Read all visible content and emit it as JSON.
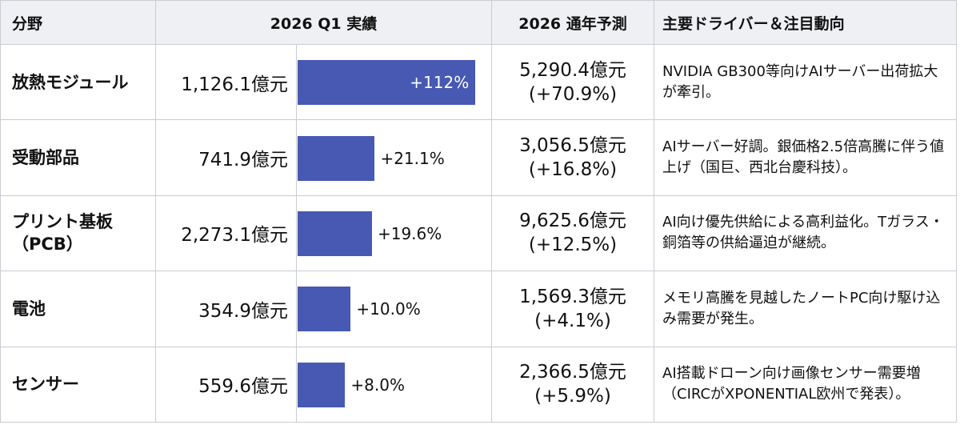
{
  "header": {
    "category": "分野",
    "q1": "2026 Q1 実績",
    "forecast": "2026 通年予測",
    "driver": "主要ドライバー＆注目動向"
  },
  "table": {
    "rows": [
      {
        "category": "放熱モジュール",
        "q1": "1,126.1億元",
        "growth": {
          "value": 112,
          "label": "+112%"
        },
        "forecast": "5,290.4億元",
        "forecast_growth": "(+70.9%)",
        "driver": "NVIDIA GB300等向けAIサーバー出荷拡大が牽引。"
      },
      {
        "category": "受動部品",
        "q1": "741.9億元",
        "growth": {
          "value": 21.1,
          "label": "+21.1%"
        },
        "forecast": "3,056.5億元",
        "forecast_growth": "(+16.8%)",
        "driver": "AIサーバー好調。銀価格2.5倍高騰に伴う値上げ（国巨、西北台慶科技）。"
      },
      {
        "category": "プリント基板（PCB）",
        "q1": "2,273.1億元",
        "growth": {
          "value": 19.6,
          "label": "+19.6%"
        },
        "forecast": "9,625.6億元",
        "forecast_growth": "(+12.5%)",
        "driver": "AI向け優先供給による高利益化。Tガラス・銅箔等の供給逼迫が継続。"
      },
      {
        "category": "電池",
        "q1": "354.9億元",
        "growth": {
          "value": 10.0,
          "label": "+10.0%"
        },
        "forecast": "1,569.3億元",
        "forecast_growth": "(+4.1%)",
        "driver": "メモリ高騰を見越したノートPC向け駆け込み需要が発生。"
      },
      {
        "category": "センサー",
        "q1": "559.6億元",
        "growth": {
          "value": 8.0,
          "label": "+8.0%"
        },
        "forecast": "2,366.5億元",
        "forecast_growth": "(+5.9%)",
        "driver": "AI搭載ドローン向け画像センサー需要増（CIRCがXPONENTIAL欧州で発表）。"
      }
    ]
  }
}
